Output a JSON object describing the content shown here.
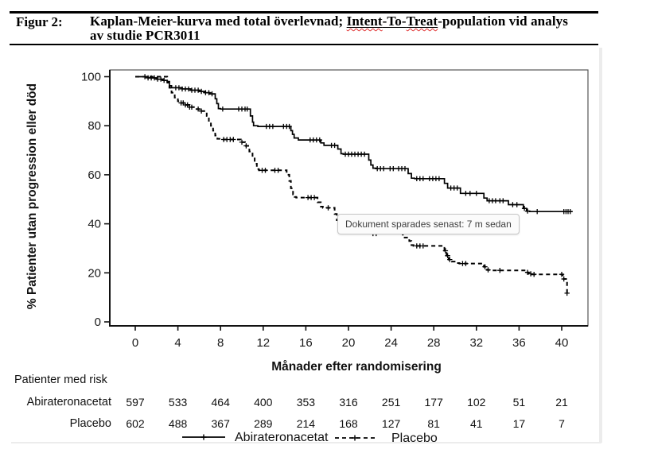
{
  "header": {
    "figure_label": "Figur 2:",
    "title_line1_pre": "Kaplan-Meier-kurva med total överlevnad; ",
    "title_itt_word1": "Intent",
    "title_itt_sep": "-To-",
    "title_itt_word2": "Treat",
    "title_line1_post": "-population vid analys",
    "title_line2": "av studie PCR3011"
  },
  "tooltip": {
    "text": "Dokument sparades senast: 7 m sedan"
  },
  "colors": {
    "curve": "#000000",
    "axis": "#111111",
    "tooltip_border": "#c6c6c6",
    "spellcheck": "#e03131"
  },
  "chart_data": {
    "type": "line",
    "subtype": "kaplan-meier",
    "title": "",
    "xlabel": "Månader efter randomisering",
    "ylabel": "% Patienter utan progression eller död",
    "xlim": [
      0,
      40
    ],
    "ylim": [
      0,
      100
    ],
    "x_ticks": [
      0,
      4,
      8,
      12,
      16,
      20,
      24,
      28,
      32,
      36,
      40
    ],
    "y_ticks": [
      0,
      20,
      40,
      60,
      80,
      100
    ],
    "grid": false,
    "legend_position": "bottom",
    "legend": [
      {
        "label": "Abirateronacetat",
        "style": "solid"
      },
      {
        "label": "Placebo",
        "style": "dashed"
      }
    ],
    "series": [
      {
        "name": "Abirateronacetat",
        "line": "solid",
        "end_month": 41.0,
        "steps": [
          [
            0,
            100
          ],
          [
            1.2,
            99.5
          ],
          [
            2.0,
            99
          ],
          [
            2.6,
            98.5
          ],
          [
            3.0,
            97.5
          ],
          [
            3.2,
            96.3
          ],
          [
            3.4,
            95.5
          ],
          [
            4.4,
            95
          ],
          [
            5.2,
            94.5
          ],
          [
            6.0,
            94
          ],
          [
            6.5,
            93.5
          ],
          [
            7.0,
            93
          ],
          [
            7.5,
            91
          ],
          [
            7.65,
            89
          ],
          [
            7.8,
            87
          ],
          [
            8.0,
            86.8
          ],
          [
            10.8,
            84
          ],
          [
            11.0,
            81.5
          ],
          [
            11.1,
            80
          ],
          [
            11.5,
            79.7
          ],
          [
            14.6,
            78
          ],
          [
            14.75,
            76.5
          ],
          [
            14.9,
            75
          ],
          [
            15.3,
            74.2
          ],
          [
            17.4,
            73
          ],
          [
            17.7,
            72
          ],
          [
            19.0,
            70.5
          ],
          [
            19.3,
            68.6
          ],
          [
            19.5,
            68.4
          ],
          [
            21.9,
            66
          ],
          [
            22.1,
            64
          ],
          [
            22.3,
            62.7
          ],
          [
            22.6,
            62.5
          ],
          [
            25.6,
            60.5
          ],
          [
            25.9,
            58.6
          ],
          [
            26.2,
            58.4
          ],
          [
            29.0,
            56.5
          ],
          [
            29.3,
            54.6
          ],
          [
            30.5,
            52.4
          ],
          [
            32.7,
            50.5
          ],
          [
            33.0,
            49.4
          ],
          [
            35.0,
            47.8
          ],
          [
            36.4,
            46.3
          ],
          [
            36.7,
            45.2
          ],
          [
            37.0,
            45
          ]
        ],
        "censor_months": [
          0.9,
          1.2,
          1.5,
          1.8,
          2.1,
          2.4,
          2.7,
          3.8,
          4.1,
          4.4,
          4.7,
          5.0,
          5.3,
          5.6,
          5.9,
          6.2,
          6.6,
          6.9,
          7.2,
          8.2,
          9.7,
          10.0,
          10.3,
          10.5,
          12.3,
          12.6,
          12.9,
          13.9,
          14.2,
          14.45,
          16.4,
          16.7,
          17.0,
          17.3,
          18.4,
          18.7,
          19.7,
          20.0,
          20.3,
          20.6,
          20.9,
          21.2,
          21.5,
          22.7,
          23.0,
          23.3,
          23.9,
          24.2,
          24.7,
          25.0,
          25.3,
          26.4,
          26.7,
          27.0,
          27.6,
          27.9,
          28.2,
          28.5,
          29.6,
          29.9,
          30.2,
          31.0,
          31.4,
          32.0,
          33.2,
          33.5,
          33.8,
          34.2,
          34.5,
          35.4,
          35.8,
          36.5,
          36.8,
          37.7,
          40.2,
          40.4,
          40.6,
          40.8
        ]
      },
      {
        "name": "Placebo",
        "line": "dashed",
        "end_month": 40.7,
        "steps": [
          [
            0,
            100
          ],
          [
            3.0,
            98
          ],
          [
            3.2,
            95.5
          ],
          [
            3.4,
            93.5
          ],
          [
            3.7,
            91.5
          ],
          [
            4.0,
            90
          ],
          [
            4.3,
            89.3
          ],
          [
            4.7,
            88.5
          ],
          [
            5.1,
            87.6
          ],
          [
            5.5,
            86.8
          ],
          [
            6.0,
            86
          ],
          [
            6.7,
            84
          ],
          [
            6.9,
            82
          ],
          [
            7.1,
            80
          ],
          [
            7.3,
            78
          ],
          [
            7.5,
            76
          ],
          [
            7.7,
            74.7
          ],
          [
            8.0,
            74.4
          ],
          [
            9.9,
            73.3
          ],
          [
            10.3,
            71.8
          ],
          [
            10.7,
            69.5
          ],
          [
            11.0,
            67
          ],
          [
            11.2,
            64.5
          ],
          [
            11.4,
            62.3
          ],
          [
            11.6,
            61.8
          ],
          [
            14.2,
            60
          ],
          [
            14.45,
            57.5
          ],
          [
            14.6,
            54.5
          ],
          [
            14.8,
            52
          ],
          [
            14.95,
            51
          ],
          [
            15.1,
            50.7
          ],
          [
            17.1,
            48.8
          ],
          [
            17.4,
            47
          ],
          [
            17.6,
            46.5
          ],
          [
            18.7,
            44
          ],
          [
            18.9,
            41.5
          ],
          [
            19.1,
            40.3
          ],
          [
            19.5,
            39
          ],
          [
            19.9,
            38
          ],
          [
            20.4,
            37.4
          ],
          [
            21.0,
            36.8
          ],
          [
            21.6,
            36.2
          ],
          [
            22.0,
            36
          ],
          [
            25.1,
            34.4
          ],
          [
            25.7,
            33
          ],
          [
            25.9,
            31.3
          ],
          [
            26.1,
            31
          ],
          [
            29.0,
            29
          ],
          [
            29.2,
            27
          ],
          [
            29.4,
            25.4
          ],
          [
            29.7,
            24.6
          ],
          [
            30.1,
            24
          ],
          [
            30.4,
            23.8
          ],
          [
            32.7,
            22.5
          ],
          [
            33.0,
            21.2
          ],
          [
            33.3,
            21
          ],
          [
            36.6,
            20.2
          ],
          [
            36.9,
            19.6
          ],
          [
            37.2,
            19.4
          ],
          [
            40.1,
            17.5
          ],
          [
            40.5,
            11.7
          ]
        ],
        "censor_months": [
          4.3,
          4.5,
          4.7,
          4.9,
          5.1,
          5.3,
          5.9,
          6.2,
          8.3,
          8.6,
          8.9,
          9.2,
          10.0,
          10.4,
          11.9,
          12.2,
          13.1,
          13.4,
          16.2,
          16.5,
          16.8,
          18.1,
          19.3,
          19.6,
          22.3,
          22.6,
          26.4,
          26.7,
          27.0,
          29.1,
          29.3,
          29.5,
          30.7,
          31.0,
          32.8,
          33.1,
          34.2,
          36.8,
          37.1,
          37.4,
          40.0,
          40.2,
          40.5
        ]
      }
    ],
    "risk_table": {
      "heading": "Patienter med risk",
      "months": [
        0,
        4,
        8,
        12,
        16,
        20,
        24,
        28,
        32,
        36,
        40
      ],
      "rows": [
        {
          "label": "Abirateronacetat",
          "values": [
            597,
            533,
            464,
            400,
            353,
            316,
            251,
            177,
            102,
            51,
            21
          ]
        },
        {
          "label": "Placebo",
          "values": [
            602,
            488,
            367,
            289,
            214,
            168,
            127,
            81,
            41,
            17,
            7
          ]
        }
      ]
    }
  }
}
